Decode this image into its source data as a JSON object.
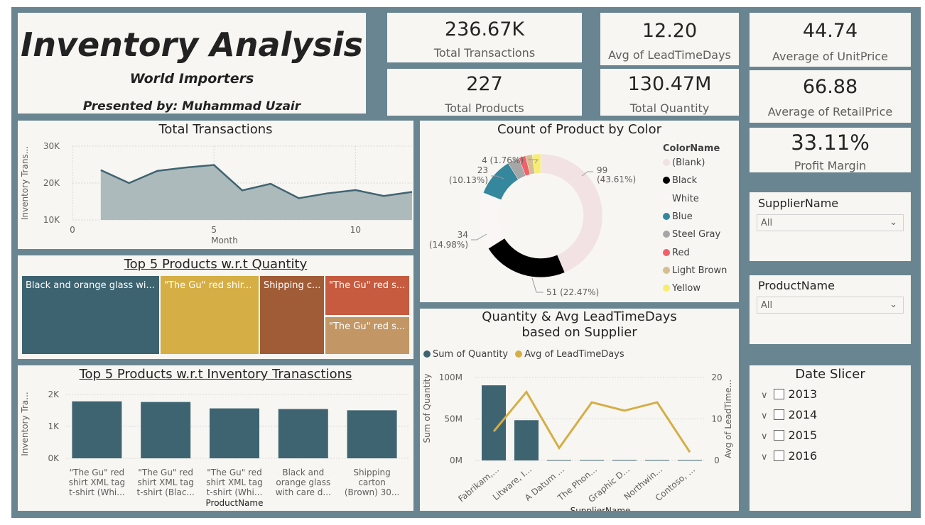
{
  "header": {
    "title": "Inventory Analysis",
    "subtitle": "World Importers",
    "presenter": "Presented by: Muhammad Uzair"
  },
  "kpis": {
    "total_transactions": {
      "value": "236.67K",
      "label": "Total Transactions"
    },
    "total_products": {
      "value": "227",
      "label": "Total Products"
    },
    "avg_leadtime": {
      "value": "12.20",
      "label": "Avg of LeadTimeDays"
    },
    "total_quantity": {
      "value": "130.47M",
      "label": "Total Quantity"
    },
    "avg_unitprice": {
      "value": "44.74",
      "label": "Average of UnitPrice"
    },
    "avg_retailprice": {
      "value": "66.88",
      "label": "Average of RetailPrice"
    },
    "profit_margin": {
      "value": "33.11%",
      "label": "Profit Margin"
    }
  },
  "slicers": {
    "supplier": {
      "title": "SupplierName",
      "selected": "All"
    },
    "product": {
      "title": "ProductName",
      "selected": "All"
    },
    "date": {
      "title": "Date Slicer",
      "items": [
        "2013",
        "2014",
        "2015",
        "2016"
      ]
    }
  },
  "chart_data": [
    {
      "id": "total-transactions",
      "type": "area",
      "title": "Total Transactions",
      "xlabel": "Month",
      "ylabel": "Inventory Trans...",
      "x": [
        1,
        2,
        3,
        4,
        5,
        6,
        7,
        8,
        9,
        10,
        11,
        12
      ],
      "values": [
        23500,
        20000,
        23300,
        24200,
        24900,
        18000,
        19800,
        15900,
        17200,
        18100,
        16500,
        17600
      ],
      "xticks": [
        0,
        5,
        10
      ],
      "yticks": [
        "10K",
        "20K",
        "30K"
      ],
      "ylim": [
        10000,
        30000
      ],
      "xlim": [
        0,
        12
      ],
      "color": "#3f6471",
      "fill": "#adbabb"
    },
    {
      "id": "color-donut",
      "type": "pie",
      "title": "Count of Product by Color",
      "legend_title": "ColorName",
      "slices": [
        {
          "name": "(Blank)",
          "value": 99,
          "color": "#f2e2e4",
          "label": "99 (43.61%)"
        },
        {
          "name": "Black",
          "value": 51,
          "color": "#000000",
          "label": "51 (22.47%)"
        },
        {
          "name": "White",
          "value": 34,
          "color": "#faf6f6",
          "label": "34 (14.98%)"
        },
        {
          "name": "Blue",
          "value": 23,
          "color": "#34879c",
          "label": "23 (10.13%)"
        },
        {
          "name": "Steel Gray",
          "value": 7,
          "color": "#a6a6a6",
          "label": ""
        },
        {
          "name": "Red",
          "value": 4,
          "color": "#f0606b",
          "label": "4 (1.76%)"
        },
        {
          "name": "Light Brown",
          "value": 4,
          "color": "#d6be92",
          "label": ""
        },
        {
          "name": "Yellow",
          "value": 5,
          "color": "#f7ed73",
          "label": ""
        }
      ]
    },
    {
      "id": "top5-quantity",
      "type": "treemap",
      "title": "Top 5 Products w.r.t Quantity",
      "items": [
        {
          "label": "Black and orange glass wi...",
          "color": "#3d6370"
        },
        {
          "label": "\"The Gu\" red shir...",
          "color": "#d5ae45"
        },
        {
          "label": "Shipping c...",
          "color": "#a05c37"
        },
        {
          "label": "\"The Gu\" red s...",
          "color": "#c65b3f"
        },
        {
          "label": "\"The Gu\" red s...",
          "color": "#c29765"
        }
      ]
    },
    {
      "id": "top5-transactions",
      "type": "bar",
      "title": "Top 5 Products w.r.t Inventory Tranasctions",
      "xlabel": "ProductName",
      "ylabel": "Inventory Tra...",
      "categories": [
        [
          "\"The Gu\" red",
          "shirt XML tag",
          "t-shirt (Whi..."
        ],
        [
          "\"The Gu\" red",
          "shirt XML tag",
          "t-shirt (Blac..."
        ],
        [
          "\"The Gu\" red",
          "shirt XML tag",
          "t-shirt (Whi..."
        ],
        [
          "Black and",
          "orange glass",
          "with care d..."
        ],
        [
          "Shipping",
          "carton",
          "(Brown) 30..."
        ]
      ],
      "values": [
        1780,
        1760,
        1560,
        1540,
        1500
      ],
      "yticks": [
        "0K",
        "1K",
        "2K"
      ],
      "ylim": [
        0,
        2150
      ],
      "color": "#3f6471"
    },
    {
      "id": "qty-leadtime-supplier",
      "type": "bar",
      "title": "Quantity & Avg LeadTimeDays based on Supplier",
      "legend": [
        "Sum of Quantity",
        "Avg of LeadTimeDays"
      ],
      "legend_colors": [
        "#3f6471",
        "#d5ae45"
      ],
      "xlabel": "SupplierName",
      "ylabel_left": "Sum of Quantity",
      "ylabel_right": "Avg of LeadTime...",
      "categories": [
        "Fabrikam,...",
        "Litware, I...",
        "A Datum ...",
        "The Phon...",
        "Graphic D...",
        "Northwin...",
        "Contoso, ..."
      ],
      "series": [
        {
          "name": "Sum of Quantity",
          "values": [
            90500000,
            48500000,
            500000,
            500000,
            500000,
            500000,
            500000
          ]
        },
        {
          "name": "Avg of LeadTimeDays",
          "values": [
            7,
            16.5,
            3,
            14,
            12,
            14,
            2
          ]
        }
      ],
      "yticks_left": [
        "0M",
        "50M",
        "100M"
      ],
      "yticks_right": [
        "0",
        "10",
        "20"
      ],
      "ylim_left": [
        0,
        100000000
      ],
      "ylim_right": [
        0,
        20
      ]
    }
  ]
}
